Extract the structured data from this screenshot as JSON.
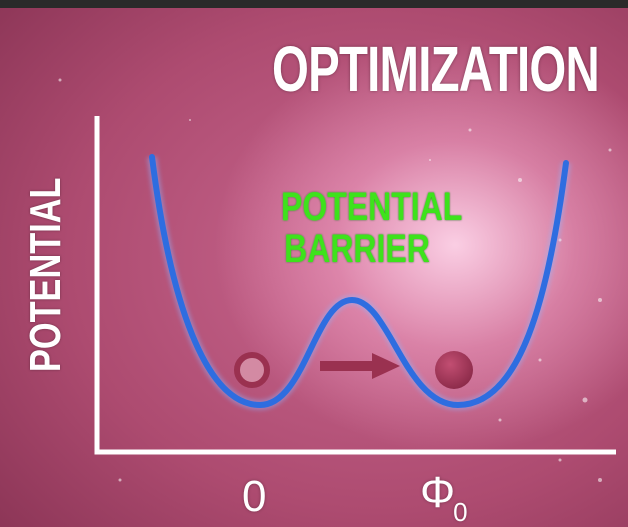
{
  "title": "OPTIMIZATION",
  "y_axis_label": "POTENTIAL",
  "barrier_label": {
    "line1": "POTENTIAL",
    "line2": "BARRIER"
  },
  "x_ticks": {
    "zero": "0",
    "phi": "Φ",
    "phi_subscript": "0"
  },
  "colors": {
    "curve": "#2e6de0",
    "curve_glow": "#8fb4ff",
    "barrier_text": "#3ee21c",
    "axes": "#ffffff",
    "ball_fill": "#a8385a",
    "arrow": "#9a3150"
  },
  "icons": {
    "start-ball": "hollow-circle",
    "end-ball": "filled-circle",
    "move-arrow": "right-arrow"
  }
}
